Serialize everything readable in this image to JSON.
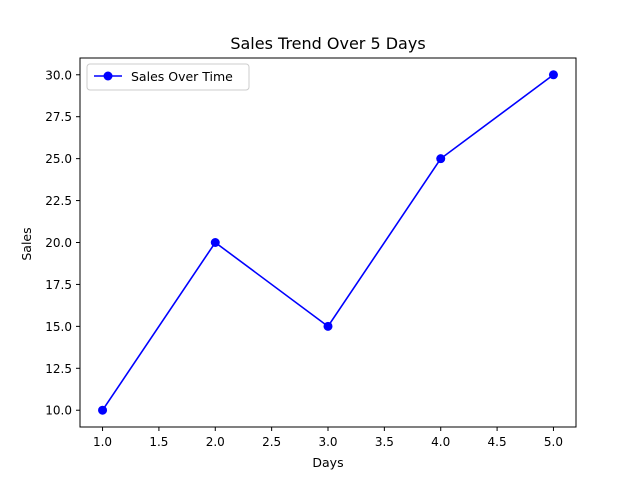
{
  "chart_data": {
    "type": "line",
    "title": "Sales Trend Over 5 Days",
    "xlabel": "Days",
    "ylabel": "Sales",
    "x": [
      1,
      2,
      3,
      4,
      5
    ],
    "series": [
      {
        "name": "Sales Over Time",
        "values": [
          10,
          20,
          15,
          25,
          30
        ],
        "color": "#0000ff",
        "marker": "circle"
      }
    ],
    "xlim": [
      0.8,
      5.2
    ],
    "ylim": [
      9.0,
      31.0
    ],
    "xticks": [
      1.0,
      1.5,
      2.0,
      2.5,
      3.0,
      3.5,
      4.0,
      4.5,
      5.0
    ],
    "xtick_labels": [
      "1.0",
      "1.5",
      "2.0",
      "2.5",
      "3.0",
      "3.5",
      "4.0",
      "4.5",
      "5.0"
    ],
    "yticks": [
      10.0,
      12.5,
      15.0,
      17.5,
      20.0,
      22.5,
      25.0,
      27.5,
      30.0
    ],
    "ytick_labels": [
      "10.0",
      "12.5",
      "15.0",
      "17.5",
      "20.0",
      "22.5",
      "25.0",
      "27.5",
      "30.0"
    ],
    "grid": false,
    "legend_position": "top-left"
  }
}
